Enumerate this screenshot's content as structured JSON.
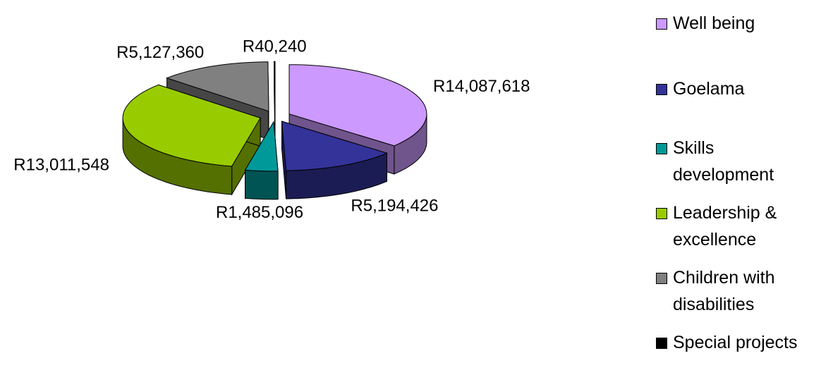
{
  "chart_data": {
    "type": "pie",
    "categories": [
      "Well being",
      "Goelama",
      "Skills development",
      "Leadership & excellence",
      "Children with disabilities",
      "Special projects"
    ],
    "values": [
      14087618,
      5194426,
      1485096,
      13011548,
      5127360,
      40240
    ],
    "value_labels": [
      "R14,087,618",
      "R5,194,426",
      "R1,485,096",
      "R13,011,548",
      "R5,127,360",
      "R40,240"
    ],
    "colors": [
      "#cc99ff",
      "#333399",
      "#009999",
      "#99cc00",
      "#808080",
      "#000000"
    ],
    "legend": "right"
  }
}
